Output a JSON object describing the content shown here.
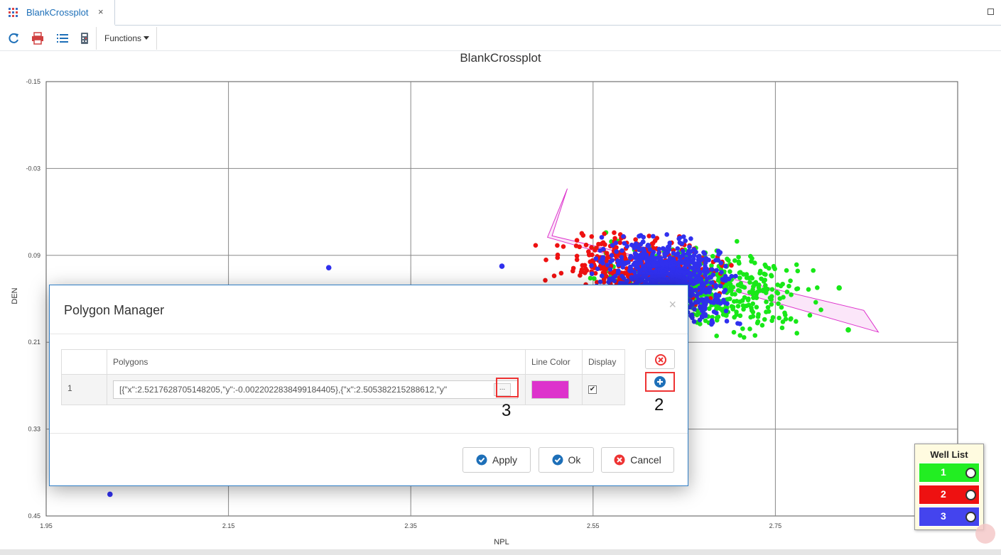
{
  "tab": {
    "title": "BlankCrossplot",
    "close_glyph": "×"
  },
  "toolbar": {
    "icons": [
      "refresh-icon",
      "print-icon",
      "list-icon",
      "calculator-icon"
    ],
    "functions_label": "Functions"
  },
  "chart_data": {
    "type": "scatter",
    "title": "BlankCrossplot",
    "xlabel": "NPL",
    "ylabel": "DEN",
    "xlim": [
      1.95,
      2.95
    ],
    "ylim": [
      0.45,
      -0.15
    ],
    "y_inverted": true,
    "x_ticks": [
      "1.95",
      "2.15",
      "2.35",
      "2.55",
      "2.75"
    ],
    "y_ticks": [
      "-0.15",
      "-0.03",
      "0.09",
      "0.21",
      "0.33",
      "0.45"
    ],
    "grid": true,
    "series": [
      {
        "name": "1",
        "color": "#18e818",
        "cluster": {
          "x": [
            2.52,
            2.82
          ],
          "y": [
            0.06,
            0.21
          ]
        },
        "outliers": [
          {
            "x": 2.82,
            "y": 0.135
          },
          {
            "x": 2.83,
            "y": 0.193
          }
        ]
      },
      {
        "name": "2",
        "color": "#ee1111",
        "cluster": {
          "x": [
            2.48,
            2.72
          ],
          "y": [
            0.05,
            0.16
          ]
        }
      },
      {
        "name": "3",
        "color": "#3030ee",
        "cluster": {
          "x": [
            2.54,
            2.72
          ],
          "y": [
            0.05,
            0.2
          ]
        },
        "outliers": [
          {
            "x": 2.26,
            "y": 0.107
          },
          {
            "x": 2.45,
            "y": 0.105
          },
          {
            "x": 2.02,
            "y": 0.42
          }
        ]
      }
    ],
    "polygon": {
      "line_color": "#dd33cc",
      "fill": "rgba(221,51,204,0.12)",
      "points": [
        {
          "x": 2.5217628705148205,
          "y": -0.0022022838499184405
        },
        {
          "x": 2.505,
          "y": 0.063
        },
        {
          "x": 2.847,
          "y": 0.166
        },
        {
          "x": 2.863,
          "y": 0.196
        },
        {
          "x": 2.5,
          "y": 0.065
        }
      ]
    }
  },
  "modal": {
    "title": "Polygon Manager",
    "close_glyph": "×",
    "table": {
      "headers": [
        "",
        "Polygons",
        "Line Color",
        "Display"
      ],
      "rows": [
        {
          "index": "1",
          "polygon_value": "[{\"x\":2.5217628705148205,\"y\":-0.0022022838499184405},{\"x\":2.505382215288612,\"y\"",
          "edit_button": "...",
          "line_color": "#dd33cc",
          "display_check": "✔"
        }
      ]
    },
    "callouts": {
      "ellipsis": "3",
      "add": "2"
    },
    "buttons": {
      "apply": "Apply",
      "ok": "Ok",
      "cancel": "Cancel"
    }
  },
  "well_list": {
    "title": "Well List",
    "items": [
      {
        "label": "1",
        "color": "#22ee22"
      },
      {
        "label": "2",
        "color": "#ee1111"
      },
      {
        "label": "3",
        "color": "#4444ee"
      }
    ]
  }
}
